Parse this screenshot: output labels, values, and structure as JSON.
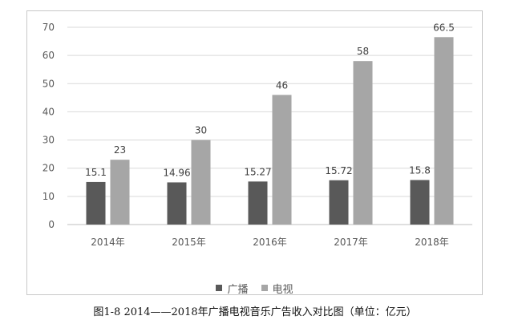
{
  "caption": "图1-8  2014——2018年广播电视音乐广告收入对比图（单位：亿元）",
  "chart_data": {
    "type": "bar",
    "categories": [
      "2014年",
      "2015年",
      "2016年",
      "2017年",
      "2018年"
    ],
    "series": [
      {
        "name": "广播",
        "values": [
          15.1,
          14.96,
          15.27,
          15.72,
          15.8
        ],
        "labels": [
          "15.1",
          "14.96",
          "15.27",
          "15.72",
          "15.8"
        ],
        "color": "#595959"
      },
      {
        "name": "电视",
        "values": [
          23,
          30,
          46,
          58,
          66.5
        ],
        "labels": [
          "23",
          "30",
          "46",
          "58",
          "66.5"
        ],
        "color": "#a6a6a6"
      }
    ],
    "ylim": [
      0,
      70
    ],
    "yticks": [
      0,
      10,
      20,
      30,
      40,
      50,
      60,
      70
    ],
    "grid": true,
    "legend_position": "bottom"
  }
}
